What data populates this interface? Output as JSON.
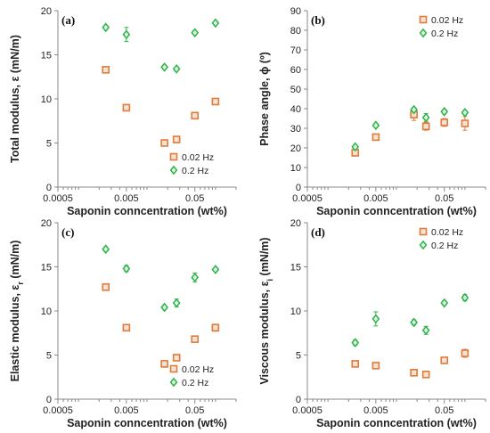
{
  "colors": {
    "s002": "#E07B39",
    "s02": "#2DB34A",
    "axis": "#888888",
    "text": "#222222"
  },
  "chart_data": [
    {
      "type": "scatter",
      "panel_label": "(a)",
      "xlabel": "Saponin conncentration (wt%)",
      "ylabel_main": "Total modulus, ε (mN/m)",
      "ylabel_sub": "",
      "xscale": "log",
      "xlim": [
        0.0005,
        0.2
      ],
      "ylim": [
        0,
        20
      ],
      "xticks": [
        0.0005,
        0.005,
        0.05
      ],
      "xtick_labels": [
        "0.0005",
        "0.005",
        "0.05"
      ],
      "yticks": [
        0,
        5,
        10,
        15,
        20
      ],
      "ytick_labels": [
        "0",
        "5",
        "10",
        "15",
        "20"
      ],
      "legend_position": "bottom-right",
      "series": [
        {
          "name": "0.02 Hz",
          "marker": "square",
          "color": "#E07B39",
          "points": [
            [
              0.0025,
              13.3,
              0.3
            ],
            [
              0.005,
              9.0,
              0.25
            ],
            [
              0.018,
              5.0,
              0.3
            ],
            [
              0.027,
              5.4,
              0.35
            ],
            [
              0.05,
              8.1,
              0.35
            ],
            [
              0.1,
              9.7,
              0.35
            ]
          ]
        },
        {
          "name": "0.2 Hz",
          "marker": "diamond",
          "color": "#2DB34A",
          "points": [
            [
              0.0025,
              18.1,
              0.2
            ],
            [
              0.005,
              17.3,
              0.8
            ],
            [
              0.018,
              13.6,
              0.2
            ],
            [
              0.027,
              13.4,
              0.2
            ],
            [
              0.05,
              17.5,
              0.2
            ],
            [
              0.1,
              18.6,
              0.2
            ]
          ]
        }
      ]
    },
    {
      "type": "scatter",
      "panel_label": "(b)",
      "xlabel": "Saponin conncentration (wt%)",
      "ylabel_main": "Phase angle, ϕ (º)",
      "ylabel_sub": "",
      "xscale": "log",
      "xlim": [
        0.0005,
        0.2
      ],
      "ylim": [
        0,
        90
      ],
      "xticks": [
        0.0005,
        0.005,
        0.05
      ],
      "xtick_labels": [
        "0.0005",
        "0.005",
        "0.05"
      ],
      "yticks": [
        0,
        10,
        20,
        30,
        40,
        50,
        60,
        70,
        80,
        90
      ],
      "ytick_labels": [
        "0",
        "10",
        "20",
        "30",
        "40",
        "50",
        "60",
        "70",
        "80",
        "90"
      ],
      "legend_position": "top-right",
      "series": [
        {
          "name": "0.02 Hz",
          "marker": "square",
          "color": "#E07B39",
          "points": [
            [
              0.0025,
              17.5,
              1.0
            ],
            [
              0.005,
              25.5,
              1.5
            ],
            [
              0.018,
              37.0,
              3.0
            ],
            [
              0.027,
              31.0,
              2.0
            ],
            [
              0.05,
              33.0,
              2.0
            ],
            [
              0.1,
              32.5,
              3.5
            ]
          ]
        },
        {
          "name": "0.2 Hz",
          "marker": "diamond",
          "color": "#2DB34A",
          "points": [
            [
              0.0025,
              20.5,
              0.8
            ],
            [
              0.005,
              31.5,
              1.0
            ],
            [
              0.018,
              39.5,
              1.0
            ],
            [
              0.027,
              35.5,
              2.0
            ],
            [
              0.05,
              38.5,
              1.0
            ],
            [
              0.1,
              38.0,
              1.0
            ]
          ]
        }
      ]
    },
    {
      "type": "scatter",
      "panel_label": "(c)",
      "xlabel": "Saponin conncentration (wt%)",
      "ylabel_main": "Elastic modulus, ε",
      "ylabel_sub": "r",
      "ylabel_tail": " (mN/m)",
      "xscale": "log",
      "xlim": [
        0.0005,
        0.2
      ],
      "ylim": [
        0,
        20
      ],
      "xticks": [
        0.0005,
        0.005,
        0.05
      ],
      "xtick_labels": [
        "0.0005",
        "0.005",
        "0.05"
      ],
      "yticks": [
        0,
        5,
        10,
        15,
        20
      ],
      "ytick_labels": [
        "0",
        "5",
        "10",
        "15",
        "20"
      ],
      "legend_position": "bottom-right",
      "series": [
        {
          "name": "0.02 Hz",
          "marker": "square",
          "color": "#E07B39",
          "points": [
            [
              0.0025,
              12.7,
              0.25
            ],
            [
              0.005,
              8.1,
              0.25
            ],
            [
              0.018,
              4.0,
              0.25
            ],
            [
              0.027,
              4.7,
              0.3
            ],
            [
              0.05,
              6.8,
              0.3
            ],
            [
              0.1,
              8.1,
              0.4
            ]
          ]
        },
        {
          "name": "0.2 Hz",
          "marker": "diamond",
          "color": "#2DB34A",
          "points": [
            [
              0.0025,
              17.0,
              0.2
            ],
            [
              0.005,
              14.8,
              0.35
            ],
            [
              0.018,
              10.4,
              0.2
            ],
            [
              0.027,
              10.9,
              0.45
            ],
            [
              0.05,
              13.8,
              0.5
            ],
            [
              0.1,
              14.7,
              0.2
            ]
          ]
        }
      ]
    },
    {
      "type": "scatter",
      "panel_label": "(d)",
      "xlabel": "Saponin conncentration (wt%)",
      "ylabel_main": "Viscous modulus, ε",
      "ylabel_sub": "i",
      "ylabel_tail": " (mN/m)",
      "xscale": "log",
      "xlim": [
        0.0005,
        0.2
      ],
      "ylim": [
        0,
        20
      ],
      "xticks": [
        0.0005,
        0.005,
        0.05
      ],
      "xtick_labels": [
        "0.0005",
        "0.005",
        "0.05"
      ],
      "yticks": [
        0,
        5,
        10,
        15,
        20
      ],
      "ytick_labels": [
        "0",
        "5",
        "10",
        "15",
        "20"
      ],
      "legend_position": "top-right",
      "series": [
        {
          "name": "0.02 Hz",
          "marker": "square",
          "color": "#E07B39",
          "points": [
            [
              0.0025,
              4.0,
              0.2
            ],
            [
              0.005,
              3.8,
              0.2
            ],
            [
              0.018,
              3.0,
              0.2
            ],
            [
              0.027,
              2.8,
              0.2
            ],
            [
              0.05,
              4.4,
              0.2
            ],
            [
              0.1,
              5.2,
              0.45
            ]
          ]
        },
        {
          "name": "0.2 Hz",
          "marker": "diamond",
          "color": "#2DB34A",
          "points": [
            [
              0.0025,
              6.4,
              0.3
            ],
            [
              0.005,
              9.1,
              0.8
            ],
            [
              0.018,
              8.7,
              0.3
            ],
            [
              0.027,
              7.8,
              0.45
            ],
            [
              0.05,
              10.9,
              0.25
            ],
            [
              0.1,
              11.5,
              0.35
            ]
          ]
        }
      ]
    }
  ]
}
